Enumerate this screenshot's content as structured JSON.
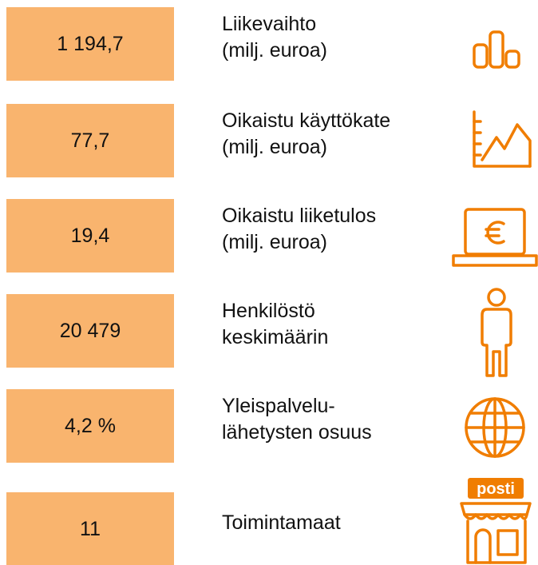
{
  "items": [
    {
      "value": "1 194,7",
      "label": [
        "Liikevaihto",
        "(milj. euroa)"
      ]
    },
    {
      "value": "77,7",
      "label": [
        "Oikaistu käyttökate",
        "(milj. euroa)"
      ]
    },
    {
      "value": "19,4",
      "label": [
        "Oikaistu liiketulos",
        "(milj. euroa)"
      ]
    },
    {
      "value": "20 479",
      "label": [
        "Henkilöstö",
        "keskimäärin"
      ]
    },
    {
      "value": "4,2 %",
      "label": [
        "Yleispalvelu-",
        "lähetysten osuus"
      ]
    },
    {
      "value": "11",
      "label": [
        "Toimintamaat"
      ]
    }
  ],
  "shop_sign": "posti"
}
